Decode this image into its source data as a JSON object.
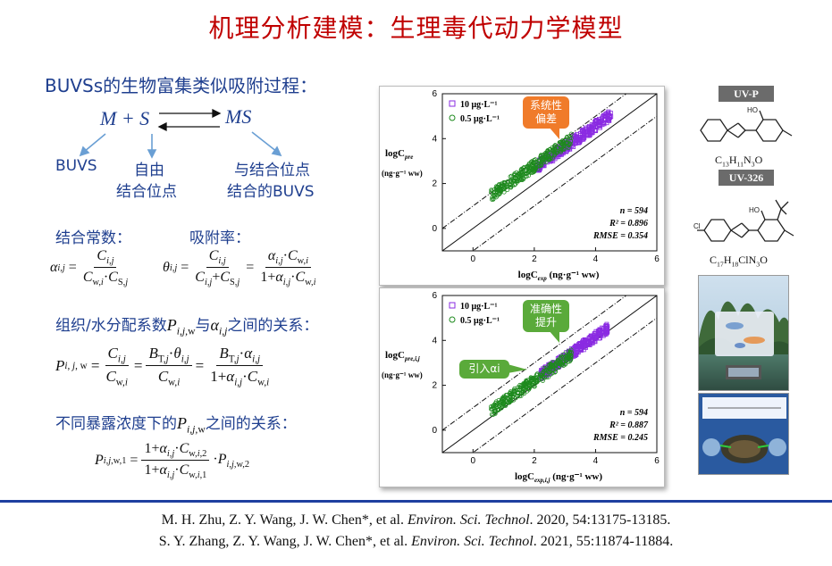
{
  "title": "机理分析建模：生理毒代动力学模型",
  "left": {
    "heading": "BUVSs的生物富集类似吸附过程：",
    "reaction": {
      "lhs": "M + S",
      "rhs": "MS",
      "label_buvs": "BUVS",
      "label_free1": "自由",
      "label_free2": "结合位点",
      "label_bound1": "与结合位点",
      "label_bound2": "结合的BUVS"
    },
    "binding_const_label": "结合常数：",
    "adsorption_rate_label": "吸附率：",
    "partition_heading": "组织/水分配系数",
    "partition_mid": "与",
    "partition_tail": "之间的关系：",
    "exposure_heading": "不同暴露浓度下的",
    "exposure_tail": "之间的关系："
  },
  "plot_top": {
    "legend": [
      "10 μg·L⁻¹",
      "0.5 μg·L⁻¹"
    ],
    "ylabel_main": "logC",
    "ylabel_sub": "pre",
    "ylabel_unit": "(ng·g⁻¹ ww)",
    "xlabel_main": "logC",
    "xlabel_sub": "exp",
    "xlabel_unit": " (ng·g⁻¹ ww)",
    "stats": [
      "n = 594",
      "R² = 0.896",
      "RMSE = 0.354"
    ],
    "callout": [
      "系统性",
      "偏差"
    ]
  },
  "plot_bottom": {
    "legend": [
      "10 μg·L⁻¹",
      "0.5 μg·L⁻¹"
    ],
    "ylabel_main": "logC",
    "ylabel_sub": "pre,i,j",
    "ylabel_unit": "(ng·g⁻¹ ww)",
    "xlabel_main": "logC",
    "xlabel_sub": "exp,i,j",
    "xlabel_unit": " (ng·g⁻¹ ww)",
    "stats": [
      "n = 594",
      "R² = 0.887",
      "RMSE = 0.245"
    ],
    "callout": [
      "准确性",
      "提升"
    ],
    "callout2": "引入αi"
  },
  "chart_data": [
    {
      "type": "scatter",
      "xlim": [
        -1,
        6
      ],
      "ylim": [
        -1,
        6
      ],
      "x_ticks": [
        0,
        2,
        4,
        6
      ],
      "y_ticks": [
        0,
        2,
        4,
        6
      ],
      "series": [
        {
          "name": "10 μg·L⁻¹",
          "color": "#8a2be2",
          "marker": "square",
          "center_x": 3.3,
          "center_y": 3.9,
          "spread": 0.55,
          "count": 300
        },
        {
          "name": "0.5 μg·L⁻¹",
          "color": "#1e8a1e",
          "marker": "circle",
          "center_x": 1.9,
          "center_y": 2.7,
          "spread": 0.6,
          "count": 294
        }
      ],
      "reference_lines": [
        "1:1",
        "±1"
      ]
    },
    {
      "type": "scatter",
      "xlim": [
        -1,
        6
      ],
      "ylim": [
        -1,
        6
      ],
      "x_ticks": [
        0,
        2,
        4,
        6
      ],
      "y_ticks": [
        0,
        2,
        4,
        6
      ],
      "series": [
        {
          "name": "10 μg·L⁻¹",
          "color": "#8a2be2",
          "marker": "square",
          "center_x": 3.3,
          "center_y": 3.5,
          "spread": 0.5,
          "count": 300
        },
        {
          "name": "0.5 μg·L⁻¹",
          "color": "#1e8a1e",
          "marker": "circle",
          "center_x": 1.9,
          "center_y": 2.1,
          "spread": 0.6,
          "count": 294
        }
      ],
      "reference_lines": [
        "1:1",
        "±1"
      ]
    }
  ],
  "molecules": {
    "uvp_label": "UV-P",
    "uvp_formula": "C13H11N3O",
    "uv326_label": "UV-326",
    "uv326_formula": "C17H18ClN3O",
    "atom_oh": "HO",
    "atom_cl": "Cl"
  },
  "references": [
    {
      "authors": "M. H. Zhu, Z. Y. Wang, J. W. Chen*, et al. ",
      "journal": "Environ. Sci. Technol",
      "tail": ". 2020, 54:13175-13185."
    },
    {
      "authors": "S. Y. Zhang, Z. Y. Wang, J. W. Chen*, et al. ",
      "journal": "Environ. Sci. Technol",
      "tail": ". 2021, 55:11874-11884."
    }
  ]
}
